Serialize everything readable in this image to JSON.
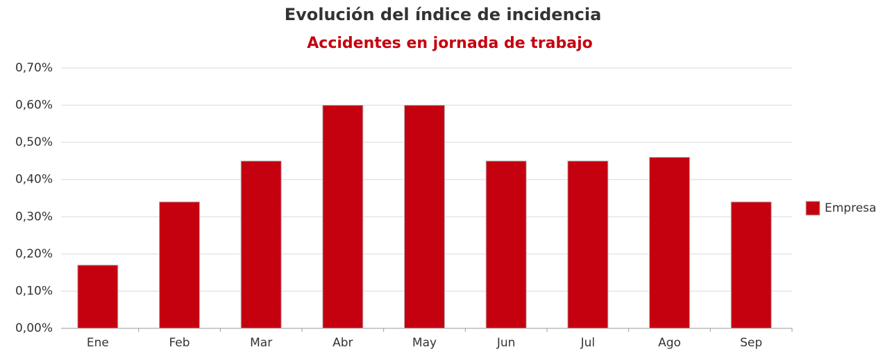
{
  "chart_data": {
    "type": "bar",
    "title": "Evolución del índice de incidencia",
    "subtitle": "Accidentes en jornada de trabajo",
    "categories": [
      "Ene",
      "Feb",
      "Mar",
      "Abr",
      "May",
      "Jun",
      "Jul",
      "Ago",
      "Sep"
    ],
    "series": [
      {
        "name": "Empresa",
        "color": "#c5000f",
        "values": [
          0.17,
          0.34,
          0.45,
          0.6,
          0.6,
          0.45,
          0.45,
          0.46,
          0.34
        ]
      }
    ],
    "ylim": [
      0,
      0.7
    ],
    "yticks": [
      {
        "value": 0,
        "label": "0,00%"
      },
      {
        "value": 0.1,
        "label": "0,10%"
      },
      {
        "value": 0.2,
        "label": "0,20%"
      },
      {
        "value": 0.3,
        "label": "0,30%"
      },
      {
        "value": 0.4,
        "label": "0,40%"
      },
      {
        "value": 0.5,
        "label": "0,50%"
      },
      {
        "value": 0.6,
        "label": "0,60%"
      },
      {
        "value": 0.7,
        "label": "0,70%"
      }
    ],
    "grid": true,
    "legend": "right"
  }
}
